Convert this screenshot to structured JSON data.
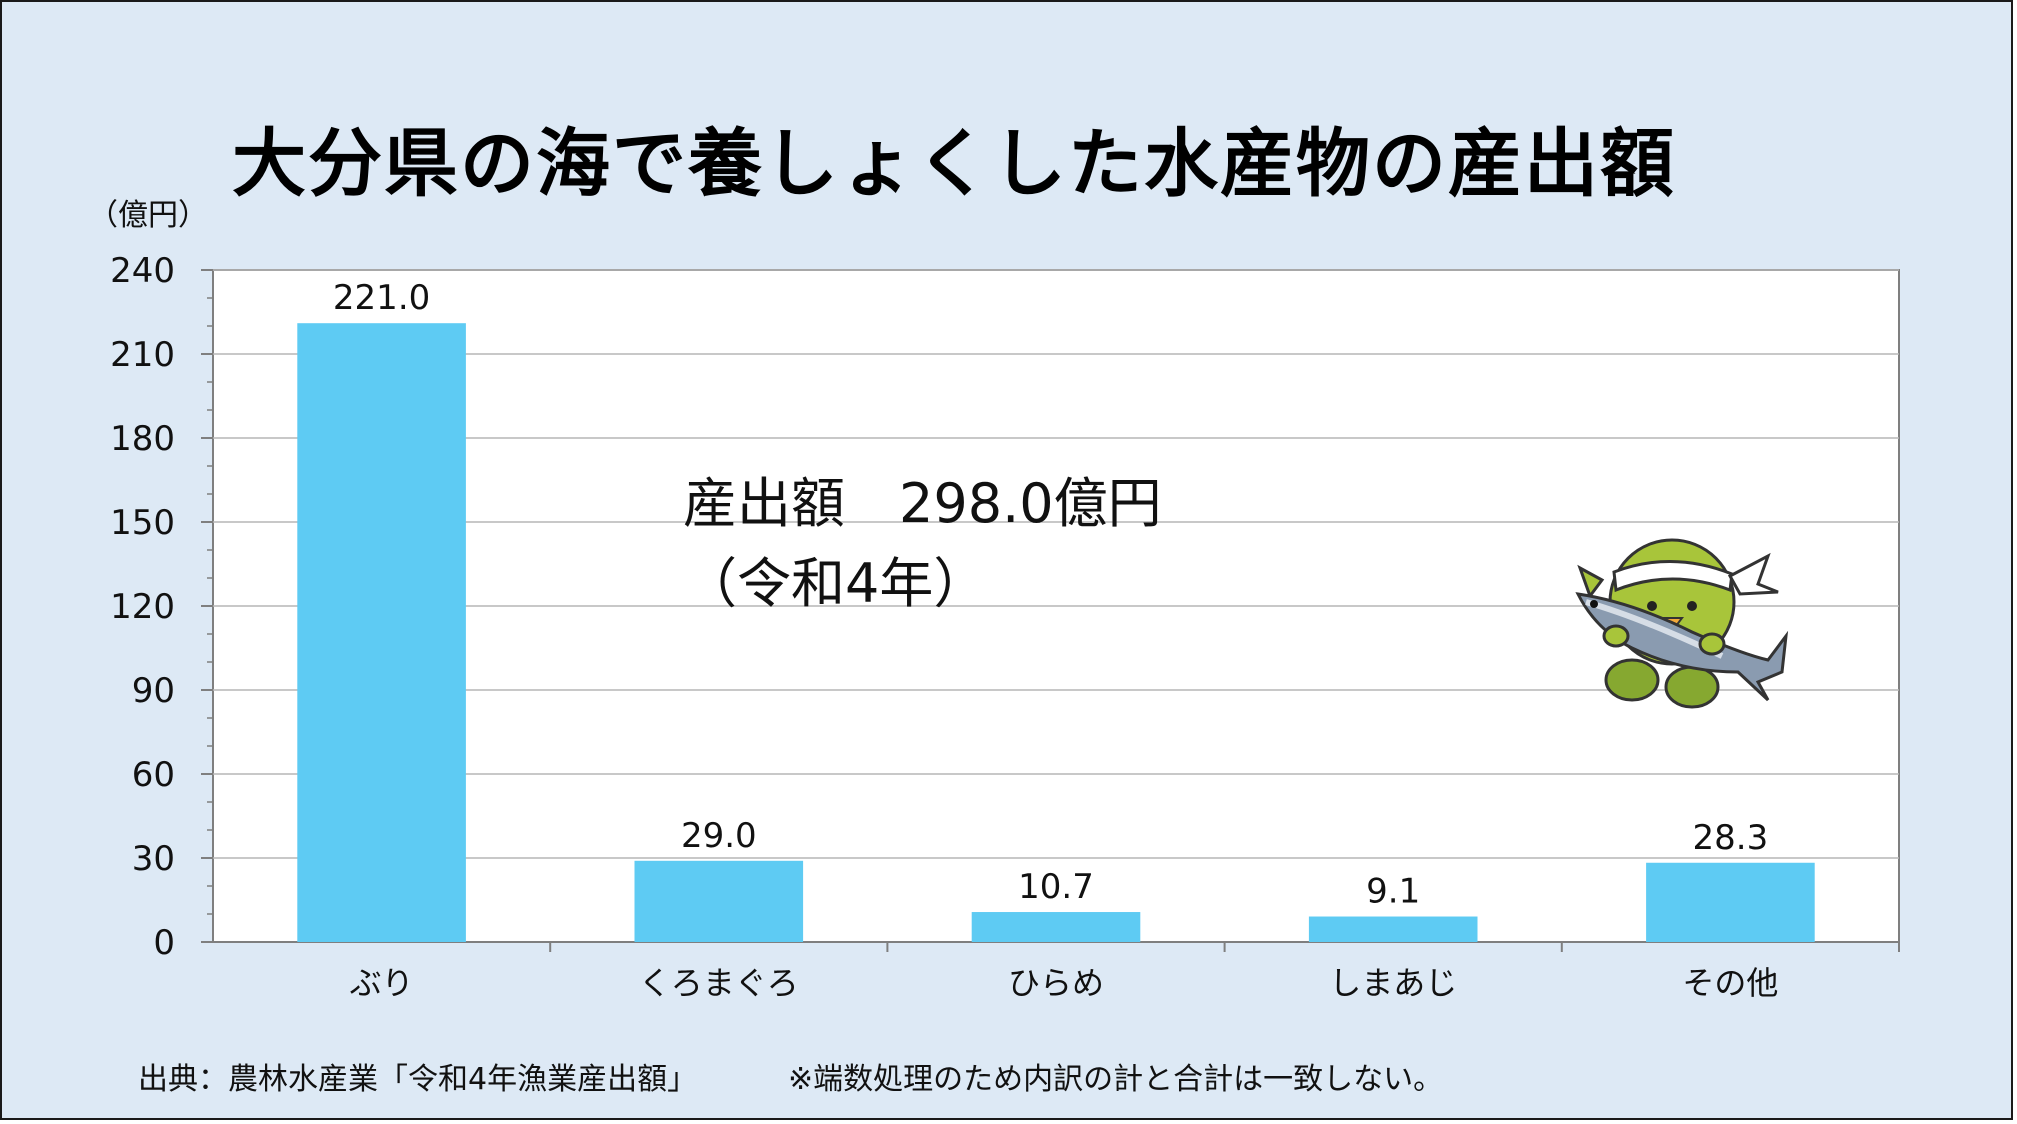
{
  "title": "大分県の海で養しょくした水産物の産出額",
  "unit_label": "（億円）",
  "total": {
    "line1": "産出額　298.0億円",
    "line2": "（令和4年）"
  },
  "source": "出典：農林水産業「令和4年漁業産出額」",
  "note": "※端数処理のため内訳の計と合計は一致しない。",
  "chart_data": {
    "type": "bar",
    "categories": [
      "ぶり",
      "くろまぐろ",
      "ひらめ",
      "しまあじ",
      "その他"
    ],
    "values": [
      221.0,
      29.0,
      10.7,
      9.1,
      28.3
    ],
    "value_labels": [
      "221.0",
      "29.0",
      "10.7",
      "9.1",
      "28.3"
    ],
    "ylim": [
      0,
      240
    ],
    "yticks": [
      0,
      30,
      60,
      90,
      120,
      150,
      180,
      210,
      240
    ],
    "grid": true,
    "bar_color": "#5ecbf3"
  },
  "colors": {
    "background": "#dde9f5",
    "plot_background": "#ffffff",
    "bar": "#5ecbf3",
    "mascot_body": "#a8c53a",
    "fish": "#8a9bb0"
  },
  "icons": {
    "mascot": "mascot-with-fish-icon"
  }
}
